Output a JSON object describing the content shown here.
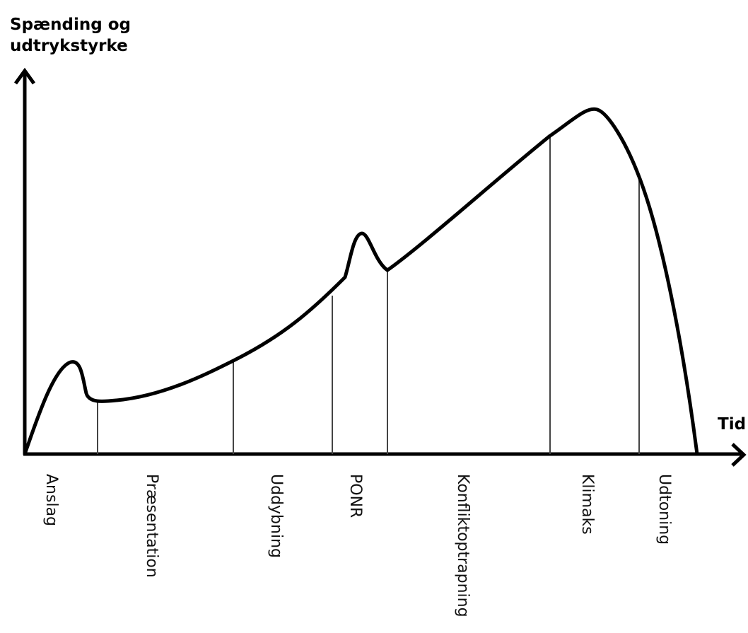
{
  "diagram": {
    "y_axis_title_line1": "Spænding og",
    "y_axis_title_line2": "udtrykstyrke",
    "x_axis_title": "Tid",
    "phases": [
      "Anslag",
      "Præsentation",
      "Uddybning",
      "PONR",
      "Konfliktoptrapning",
      "Klimaks",
      "Udtoning"
    ]
  }
}
